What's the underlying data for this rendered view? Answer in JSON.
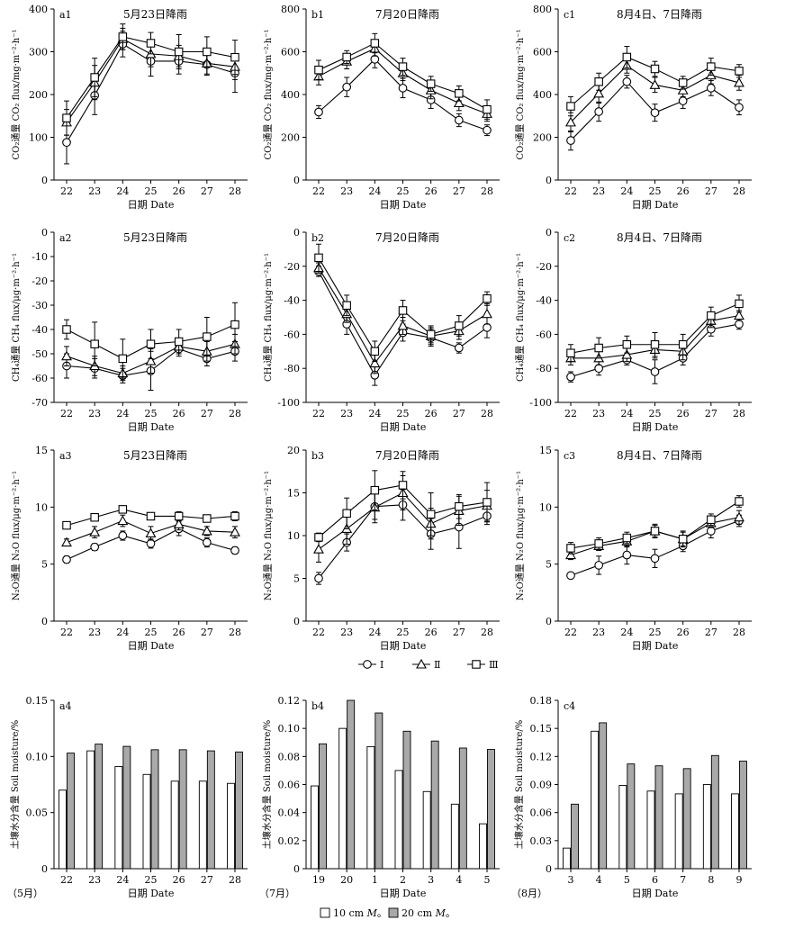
{
  "legends": {
    "treatments": [
      {
        "label": "Ⅰ",
        "marker": "circle"
      },
      {
        "label": "Ⅱ",
        "marker": "triangle"
      },
      {
        "label": "Ⅲ",
        "marker": "square"
      }
    ],
    "moisture": [
      {
        "label": "10 cm",
        "suffix": "M",
        "fill": "#ffffff"
      },
      {
        "label": "20 cm",
        "suffix": "M",
        "fill": "#a9a9a9"
      }
    ]
  },
  "month_labels": [
    "（5月）",
    "（7月）",
    "（8月）"
  ],
  "chart_data": [
    {
      "id": "a1",
      "type": "line",
      "label": "a1",
      "title": "5月23日降雨",
      "ylabel": "CO₂通量 CO₂ flux/mg·m⁻²·h⁻¹",
      "xlabel": "日期 Date",
      "x": [
        "22",
        "23",
        "24",
        "25",
        "26",
        "27",
        "28"
      ],
      "ylim": [
        0,
        400
      ],
      "yticks": [
        0,
        100,
        200,
        300,
        400
      ],
      "series": [
        {
          "name": "Ⅰ",
          "marker": "circle",
          "values": [
            88,
            198,
            318,
            278,
            278,
            270,
            250
          ],
          "err": [
            50,
            45,
            30,
            35,
            30,
            25,
            45
          ]
        },
        {
          "name": "Ⅱ",
          "marker": "triangle",
          "values": [
            135,
            228,
            330,
            295,
            290,
            273,
            265
          ],
          "err": [
            30,
            40,
            25,
            30,
            25,
            25,
            30
          ]
        },
        {
          "name": "Ⅲ",
          "marker": "square",
          "values": [
            145,
            240,
            335,
            320,
            300,
            300,
            287
          ],
          "err": [
            40,
            45,
            30,
            25,
            40,
            35,
            40
          ]
        }
      ]
    },
    {
      "id": "b1",
      "type": "line",
      "label": "b1",
      "title": "7月20日降雨",
      "ylabel": "CO₂通量 CO₂ flux/mg·m⁻²·h⁻¹",
      "xlabel": "日期 Date",
      "x": [
        "22",
        "23",
        "24",
        "25",
        "26",
        "27",
        "28"
      ],
      "ylim": [
        0,
        800
      ],
      "yticks": [
        0,
        200,
        400,
        600,
        800
      ],
      "series": [
        {
          "name": "Ⅰ",
          "marker": "circle",
          "values": [
            318,
            435,
            565,
            430,
            375,
            280,
            233
          ],
          "err": [
            30,
            45,
            40,
            45,
            40,
            30,
            25
          ]
        },
        {
          "name": "Ⅱ",
          "marker": "triangle",
          "values": [
            485,
            555,
            615,
            500,
            420,
            360,
            310
          ],
          "err": [
            40,
            35,
            35,
            35,
            40,
            35,
            35
          ]
        },
        {
          "name": "Ⅲ",
          "marker": "square",
          "values": [
            515,
            575,
            640,
            530,
            450,
            405,
            330
          ],
          "err": [
            45,
            30,
            45,
            40,
            35,
            35,
            45
          ]
        }
      ]
    },
    {
      "id": "c1",
      "type": "line",
      "label": "c1",
      "title": "8月4日、7日降雨",
      "ylabel": "CO₂通量 CO₂ flux/mg·m⁻²·h⁻¹",
      "xlabel": "日期 Date",
      "x": [
        "22",
        "23",
        "24",
        "25",
        "26",
        "27",
        "28"
      ],
      "ylim": [
        0,
        800
      ],
      "yticks": [
        0,
        200,
        400,
        600,
        800
      ],
      "series": [
        {
          "name": "Ⅰ",
          "marker": "circle",
          "values": [
            185,
            320,
            460,
            315,
            370,
            430,
            340
          ],
          "err": [
            45,
            45,
            30,
            40,
            35,
            35,
            35
          ]
        },
        {
          "name": "Ⅱ",
          "marker": "triangle",
          "values": [
            270,
            405,
            535,
            445,
            420,
            490,
            455
          ],
          "err": [
            45,
            45,
            35,
            35,
            30,
            40,
            35
          ]
        },
        {
          "name": "Ⅲ",
          "marker": "square",
          "values": [
            345,
            460,
            575,
            520,
            455,
            530,
            510
          ],
          "err": [
            45,
            40,
            50,
            35,
            30,
            40,
            30
          ]
        }
      ]
    },
    {
      "id": "a2",
      "type": "line",
      "label": "a2",
      "title": "5月23日降雨",
      "ylabel": "CH₄通量 CH₄ flux/μg·m⁻²·h⁻¹",
      "xlabel": "日期 Date",
      "x": [
        "22",
        "23",
        "24",
        "25",
        "26",
        "27",
        "28"
      ],
      "ylim": [
        -70,
        0
      ],
      "yticks": [
        0,
        -10,
        -20,
        -30,
        -40,
        -50,
        -60,
        -70
      ],
      "series": [
        {
          "name": "Ⅰ",
          "marker": "circle",
          "values": [
            -55,
            -56,
            -59,
            -57,
            -48,
            -52,
            -49
          ],
          "err": [
            5,
            4,
            3,
            8,
            3,
            3,
            4
          ]
        },
        {
          "name": "Ⅱ",
          "marker": "triangle",
          "values": [
            -51,
            -55,
            -58,
            -53,
            -47,
            -49,
            -46
          ],
          "err": [
            4,
            4,
            3,
            5,
            3,
            4,
            4
          ]
        },
        {
          "name": "Ⅲ",
          "marker": "square",
          "values": [
            -40,
            -46,
            -52,
            -46,
            -45,
            -43,
            -38
          ],
          "err": [
            4,
            9,
            8,
            6,
            5,
            8,
            9
          ]
        }
      ]
    },
    {
      "id": "b2",
      "type": "line",
      "label": "b2",
      "title": "7月20日降雨",
      "ylabel": "CH₄通量 CH₄ flux/μg·m⁻²·h⁻¹",
      "xlabel": "日期 Date",
      "x": [
        "22",
        "23",
        "24",
        "25",
        "26",
        "27",
        "28"
      ],
      "ylim": [
        -100,
        0
      ],
      "yticks": [
        0,
        -20,
        -40,
        -60,
        -80,
        -100
      ],
      "series": [
        {
          "name": "Ⅰ",
          "marker": "circle",
          "values": [
            -23,
            -54,
            -84,
            -59,
            -62,
            -68,
            -56
          ],
          "err": [
            3,
            6,
            6,
            5,
            5,
            3,
            6
          ]
        },
        {
          "name": "Ⅱ",
          "marker": "triangle",
          "values": [
            -21,
            -48,
            -77,
            -55,
            -61,
            -58,
            -48
          ],
          "err": [
            3,
            5,
            6,
            5,
            5,
            5,
            6
          ]
        },
        {
          "name": "Ⅲ",
          "marker": "square",
          "values": [
            -15,
            -43,
            -70,
            -46,
            -60,
            -55,
            -39
          ],
          "err": [
            8,
            6,
            6,
            6,
            5,
            6,
            4
          ]
        }
      ]
    },
    {
      "id": "c2",
      "type": "line",
      "label": "c2",
      "title": "8月4日、7日降雨",
      "ylabel": "CH₄通量 CH₄ flux/μg·m⁻²·h⁻¹",
      "xlabel": "日期 Date",
      "x": [
        "22",
        "23",
        "24",
        "25",
        "26",
        "27",
        "28"
      ],
      "ylim": [
        -100,
        0
      ],
      "yticks": [
        0,
        -20,
        -40,
        -60,
        -80,
        -100
      ],
      "series": [
        {
          "name": "Ⅰ",
          "marker": "circle",
          "values": [
            -85,
            -80,
            -75,
            -82,
            -74,
            -57,
            -54
          ],
          "err": [
            3,
            4,
            3,
            7,
            4,
            4,
            3
          ]
        },
        {
          "name": "Ⅱ",
          "marker": "triangle",
          "values": [
            -74,
            -74,
            -72,
            -69,
            -70,
            -52,
            -49
          ],
          "err": [
            4,
            4,
            4,
            5,
            5,
            4,
            3
          ]
        },
        {
          "name": "Ⅲ",
          "marker": "square",
          "values": [
            -71,
            -68,
            -66,
            -66,
            -66,
            -49,
            -42
          ],
          "err": [
            5,
            6,
            5,
            7,
            6,
            5,
            5
          ]
        }
      ]
    },
    {
      "id": "a3",
      "type": "line",
      "label": "a3",
      "title": "5月23日降雨",
      "ylabel": "N₂O通量 N₂O flux/μg·m⁻²·h⁻¹",
      "xlabel": "日期 Date",
      "x": [
        "22",
        "23",
        "24",
        "25",
        "26",
        "27",
        "28"
      ],
      "ylim": [
        0,
        15
      ],
      "yticks": [
        0,
        5,
        10,
        15
      ],
      "series": [
        {
          "name": "Ⅰ",
          "marker": "circle",
          "values": [
            5.4,
            6.5,
            7.5,
            6.8,
            8.1,
            6.9,
            6.2
          ],
          "err": [
            0.3,
            0.3,
            0.4,
            0.4,
            0.6,
            0.4,
            0.3
          ]
        },
        {
          "name": "Ⅱ",
          "marker": "triangle",
          "values": [
            6.9,
            7.8,
            8.8,
            7.7,
            8.5,
            7.9,
            7.8
          ],
          "err": [
            0.3,
            0.5,
            0.5,
            0.6,
            0.5,
            0.4,
            0.5
          ]
        },
        {
          "name": "Ⅲ",
          "marker": "square",
          "values": [
            8.4,
            9.1,
            9.8,
            9.2,
            9.2,
            9.0,
            9.2
          ],
          "err": [
            0.2,
            0.2,
            0.2,
            0.2,
            0.4,
            0.2,
            0.4
          ]
        }
      ]
    },
    {
      "id": "b3",
      "type": "line",
      "label": "b3",
      "title": "7月20日降雨",
      "ylabel": "N₂O通量 N₂O flux/μg·m⁻²·h⁻¹",
      "xlabel": "日期 Date",
      "x": [
        "22",
        "23",
        "24",
        "25",
        "26",
        "27",
        "28"
      ],
      "ylim": [
        0,
        20
      ],
      "yticks": [
        0,
        5,
        10,
        15,
        20
      ],
      "series": [
        {
          "name": "Ⅰ",
          "marker": "circle",
          "values": [
            5.0,
            9.2,
            13.4,
            13.6,
            10.2,
            11.0,
            12.3
          ],
          "err": [
            0.7,
            1.0,
            1.5,
            1.8,
            1.8,
            2.5,
            1.0
          ]
        },
        {
          "name": "Ⅱ",
          "marker": "triangle",
          "values": [
            8.4,
            10.8,
            13.3,
            15.0,
            11.4,
            12.9,
            13.5
          ],
          "err": [
            1.5,
            1.8,
            1.8,
            2.0,
            1.8,
            1.7,
            1.8
          ]
        },
        {
          "name": "Ⅲ",
          "marker": "square",
          "values": [
            9.8,
            12.6,
            15.3,
            15.9,
            12.5,
            13.4,
            13.9
          ],
          "err": [
            0.5,
            1.8,
            2.3,
            1.6,
            2.5,
            1.4,
            2.3
          ]
        }
      ]
    },
    {
      "id": "c3",
      "type": "line",
      "label": "c3",
      "title": "8月4日、7日降雨",
      "ylabel": "N₂O通量 N₂O flux/μg·m⁻²·h⁻¹",
      "xlabel": "日期 Date",
      "x": [
        "22",
        "23",
        "24",
        "25",
        "26",
        "27",
        "28"
      ],
      "ylim": [
        0,
        15
      ],
      "yticks": [
        0,
        5,
        10,
        15
      ],
      "series": [
        {
          "name": "Ⅰ",
          "marker": "circle",
          "values": [
            4.0,
            4.9,
            5.8,
            5.5,
            6.6,
            7.9,
            8.8
          ],
          "err": [
            0.2,
            0.8,
            0.8,
            0.8,
            0.5,
            0.6,
            0.5
          ]
        },
        {
          "name": "Ⅱ",
          "marker": "triangle",
          "values": [
            5.8,
            6.6,
            7.0,
            7.9,
            7.2,
            8.6,
            9.1
          ],
          "err": [
            0.4,
            0.4,
            0.5,
            0.5,
            0.7,
            0.4,
            0.6
          ]
        },
        {
          "name": "Ⅲ",
          "marker": "square",
          "values": [
            6.4,
            6.8,
            7.3,
            7.9,
            7.2,
            8.9,
            10.5
          ],
          "err": [
            0.5,
            0.5,
            0.5,
            0.6,
            0.6,
            0.5,
            0.5
          ]
        }
      ]
    },
    {
      "id": "a4",
      "type": "bar",
      "label": "a4",
      "ylabel": "土壤水分含量 Soil moisture/%",
      "xlabel": "日期 Date",
      "categories": [
        "22",
        "23",
        "24",
        "25",
        "26",
        "27",
        "28"
      ],
      "ylim": [
        0,
        0.15
      ],
      "yticks": [
        "0",
        "0.05",
        "0.10",
        "0.15"
      ],
      "series": [
        {
          "name": "10 cm",
          "values": [
            0.07,
            0.105,
            0.091,
            0.084,
            0.078,
            0.078,
            0.076
          ]
        },
        {
          "name": "20 cm",
          "values": [
            0.103,
            0.111,
            0.109,
            0.106,
            0.106,
            0.105,
            0.104
          ]
        }
      ]
    },
    {
      "id": "b4",
      "type": "bar",
      "label": "b4",
      "ylabel": "土壤水分含量 Soil moisture/%",
      "xlabel": "日期 Date",
      "categories": [
        "19",
        "20",
        "1",
        "2",
        "3",
        "4",
        "5"
      ],
      "ylim": [
        0,
        0.12
      ],
      "yticks": [
        "0",
        "0.02",
        "0.04",
        "0.06",
        "0.08",
        "0.10",
        "0.12"
      ],
      "series": [
        {
          "name": "10 cm",
          "values": [
            0.059,
            0.1,
            0.087,
            0.07,
            0.055,
            0.046,
            0.032
          ]
        },
        {
          "name": "20 cm",
          "values": [
            0.089,
            0.12,
            0.111,
            0.098,
            0.091,
            0.086,
            0.085
          ]
        }
      ]
    },
    {
      "id": "c4",
      "type": "bar",
      "label": "c4",
      "ylabel": "土壤水分含量 Soil moisture/%",
      "xlabel": "日期 Date",
      "categories": [
        "3",
        "4",
        "5",
        "6",
        "7",
        "8",
        "9"
      ],
      "ylim": [
        0,
        0.18
      ],
      "yticks": [
        "0",
        "0.03",
        "0.06",
        "0.09",
        "0.12",
        "0.15",
        "0.18"
      ],
      "series": [
        {
          "name": "10 cm",
          "values": [
            0.022,
            0.147,
            0.089,
            0.083,
            0.08,
            0.09,
            0.08
          ]
        },
        {
          "name": "20 cm",
          "values": [
            0.069,
            0.156,
            0.112,
            0.11,
            0.107,
            0.121,
            0.115
          ]
        }
      ]
    }
  ]
}
